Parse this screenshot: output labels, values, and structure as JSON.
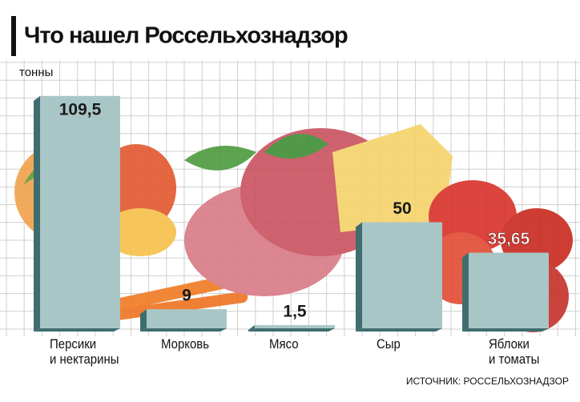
{
  "chart_data": {
    "type": "bar",
    "title": "Что нашел Россельхознадзор",
    "y_label": "тонны",
    "source": "ИСТОЧНИК: РОССЕЛЬХОЗНАДЗОР",
    "categories": [
      "Персики\nи нектарины",
      "Морковь",
      "Мясо",
      "Сыр",
      "Яблоки\nи томаты"
    ],
    "values": [
      109.5,
      9,
      1.5,
      50,
      35.65
    ],
    "value_labels": [
      "109,5",
      "9",
      "1,5",
      "50",
      "35,65"
    ],
    "color": "#a9c6c6",
    "side_color": "#3f6d6f"
  }
}
